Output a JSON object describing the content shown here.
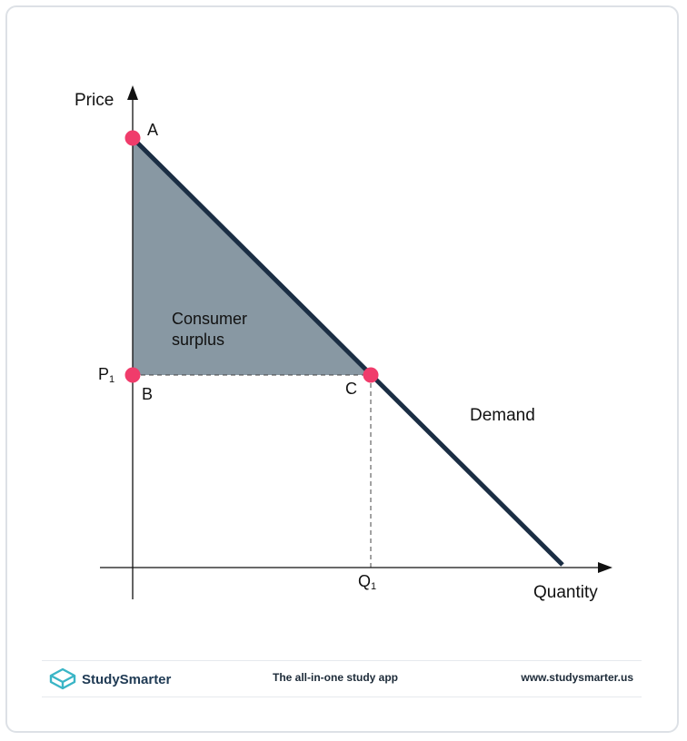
{
  "diagram": {
    "y_axis_label": "Price",
    "x_axis_label": "Quantity",
    "point_a_label": "A",
    "point_b_label": "B",
    "point_c_label": "C",
    "price_label": "P",
    "price_subscript": "1",
    "quantity_label": "Q",
    "quantity_subscript": "1",
    "area_label_line1": "Consumer",
    "area_label_line2": "surplus",
    "curve_label": "Demand"
  },
  "footer": {
    "brand": "StudySmarter",
    "tagline": "The all-in-one study app",
    "website": "www.studysmarter.us"
  },
  "colors": {
    "demand_line": "#1b2e44",
    "surplus_fill": "#8898a3",
    "points": "#f03c6b",
    "brand": "#3ab5c6"
  }
}
